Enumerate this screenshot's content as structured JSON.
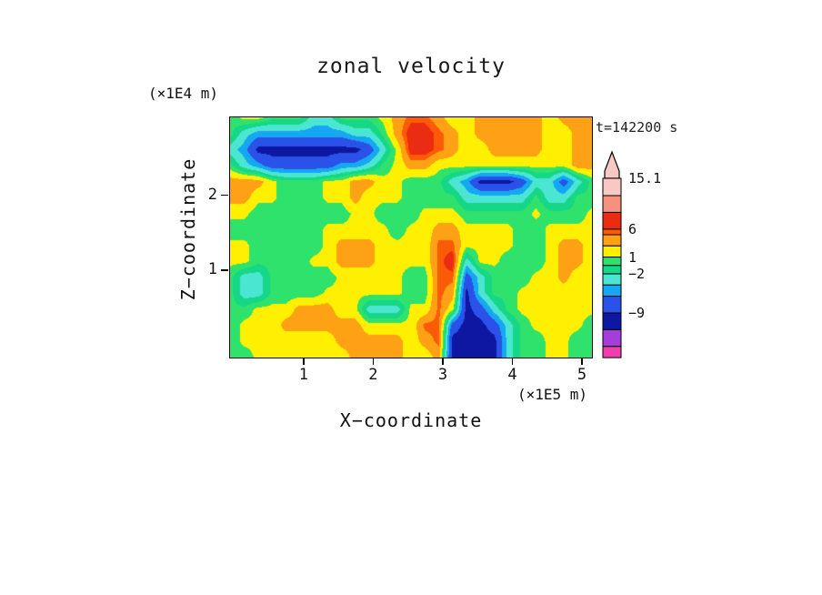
{
  "title": "zonal velocity",
  "annotations": {
    "time": "t=142200 s"
  },
  "x_axis": {
    "label": "X−coordinate",
    "unit": "(×1E5 m)",
    "min": -0.07,
    "max": 5.13,
    "ticks": [
      {
        "v": 1,
        "label": "1"
      },
      {
        "v": 2,
        "label": "2"
      },
      {
        "v": 3,
        "label": "3"
      },
      {
        "v": 4,
        "label": "4"
      },
      {
        "v": 5,
        "label": "5"
      }
    ]
  },
  "z_axis": {
    "label": "Z−coordinate",
    "unit": "(×1E4 m)",
    "min": -0.15,
    "max": 3.05,
    "ticks": [
      {
        "v": 1,
        "label": "1"
      },
      {
        "v": 2,
        "label": "2"
      }
    ]
  },
  "colorbar": {
    "arrow_color": "#f8c8c5",
    "ticks": [
      {
        "v": 15.1,
        "label": "15.1"
      },
      {
        "v": 6,
        "label": "6"
      },
      {
        "v": 1,
        "label": "1"
      },
      {
        "v": -2,
        "label": "−2"
      },
      {
        "v": -9,
        "label": "−9"
      }
    ]
  },
  "chart_data": {
    "type": "heatmap",
    "title": "zonal velocity",
    "xlabel": "X-coordinate (×1E5 m)",
    "ylabel": "Z-coordinate (×1E4 m)",
    "time": "t=142200 s",
    "x_range": [
      0,
      5.2
    ],
    "z_range": [
      0,
      3.0
    ],
    "value_max": 15.1,
    "value_min": -17,
    "levels": [
      -17,
      -15,
      -12,
      -9,
      -6,
      -4,
      -2,
      -0.5,
      1,
      3,
      5,
      6,
      9,
      12,
      15.1
    ],
    "colors": [
      "#ef3fae",
      "#a53ddb",
      "#0d17a2",
      "#2a52e8",
      "#16a7f2",
      "#4be6d2",
      "#16d787",
      "#2fe26b",
      "#fef000",
      "#ffa114",
      "#fb5b06",
      "#ea2c12",
      "#f5917e",
      "#f8c8c5"
    ],
    "values": [
      [
        0,
        1.5,
        1.5,
        0,
        0,
        0,
        -3,
        -3,
        0,
        0,
        0,
        1.5,
        4,
        5.5,
        5.5,
        4,
        1.5,
        1.5,
        4,
        4,
        4,
        4,
        4,
        1.5,
        4,
        4,
        4
      ],
      [
        0,
        -3,
        -5,
        -5,
        -5,
        -5,
        -5,
        -5,
        -5,
        -3,
        -3,
        0,
        4,
        7,
        7,
        5.5,
        4,
        1.5,
        4,
        4,
        4,
        4,
        4,
        1.5,
        1.5,
        4,
        4
      ],
      [
        -3,
        -5,
        -10,
        -10,
        -10,
        -10,
        -10,
        -10,
        -10,
        -10,
        -7.5,
        -3,
        1.5,
        7,
        7,
        5.5,
        4,
        1.5,
        1.5,
        4,
        4,
        4,
        4,
        1.5,
        1.5,
        4,
        4
      ],
      [
        0,
        -3,
        -5,
        -7.5,
        -7.5,
        -7.5,
        -7.5,
        -7.5,
        -5,
        -5,
        -3,
        0,
        1.5,
        4,
        4,
        1.5,
        1.5,
        1.5,
        1.5,
        1.5,
        1.5,
        1.5,
        1.5,
        1.5,
        1.5,
        4,
        4
      ],
      [
        4,
        4,
        4,
        1.5,
        0,
        0,
        0,
        1.5,
        1.5,
        4,
        4,
        1.5,
        1.5,
        0,
        0,
        0,
        -3,
        -5,
        -10,
        -10,
        -10,
        -7.5,
        -3,
        -3,
        -7.5,
        -3,
        0
      ],
      [
        4,
        4,
        1.5,
        1.5,
        0,
        0,
        0,
        1.5,
        1.5,
        4,
        1.5,
        1.5,
        1.5,
        0,
        0,
        0,
        0,
        -3,
        -3,
        -3,
        -3,
        -3,
        0,
        -3,
        -3,
        0,
        0
      ],
      [
        1.5,
        1.5,
        0,
        0,
        0,
        0,
        0,
        0,
        0,
        1.5,
        1.5,
        0,
        0,
        0,
        1.5,
        1.5,
        1.5,
        0,
        0,
        0,
        0,
        0,
        1.5,
        0,
        0,
        0,
        1.5
      ],
      [
        0,
        0,
        0,
        0,
        0,
        0,
        0,
        1.5,
        1.5,
        1.5,
        1.5,
        1.5,
        0,
        1.5,
        1.5,
        4,
        4,
        1.5,
        1.5,
        1.5,
        1.5,
        0,
        0,
        1.5,
        1.5,
        1.5,
        1.5
      ],
      [
        1.5,
        1.5,
        0,
        0,
        0,
        0,
        0,
        1.5,
        4,
        4,
        4,
        1.5,
        1.5,
        1.5,
        1.5,
        5.5,
        5.5,
        1.5,
        1.5,
        1.5,
        1.5,
        0,
        0,
        1.5,
        4,
        4,
        1.5
      ],
      [
        1.5,
        1.5,
        0,
        0,
        0,
        0,
        1.5,
        1.5,
        4,
        4,
        4,
        1.5,
        1.5,
        1.5,
        1.5,
        5.5,
        7,
        -3,
        1.5,
        1.5,
        0,
        0,
        0,
        1.5,
        4,
        4,
        1.5
      ],
      [
        0,
        -3,
        -3,
        0,
        0,
        0,
        0,
        0,
        1.5,
        1.5,
        1.5,
        1.5,
        1.5,
        0,
        0,
        5.5,
        5.5,
        -7.5,
        -3,
        0,
        0,
        0,
        1.5,
        1.5,
        4,
        1.5,
        1.5
      ],
      [
        0,
        -3,
        -3,
        0,
        0,
        0,
        0,
        1.5,
        1.5,
        1.5,
        1.5,
        1.5,
        1.5,
        0,
        0,
        5.5,
        4,
        -10,
        -3,
        0,
        0,
        1.5,
        1.5,
        1.5,
        1.5,
        1.5,
        1.5
      ],
      [
        0,
        0,
        1.5,
        1.5,
        1.5,
        4,
        4,
        4,
        1.5,
        1.5,
        -3,
        -3,
        -3,
        1.5,
        1.5,
        5.5,
        1.5,
        -10,
        -7.5,
        -3,
        0,
        1.5,
        1.5,
        1.5,
        1.5,
        1.5,
        1.5
      ],
      [
        0,
        1.5,
        1.5,
        1.5,
        4,
        4,
        4,
        4,
        4,
        4,
        1.5,
        1.5,
        1.5,
        1.5,
        5.5,
        5.5,
        -7.5,
        -10,
        -10,
        -7.5,
        -3,
        0,
        1.5,
        1.5,
        1.5,
        1.5,
        0
      ],
      [
        0,
        1.5,
        1.5,
        1.5,
        1.5,
        1.5,
        1.5,
        1.5,
        4,
        4,
        4,
        4,
        4,
        1.5,
        4,
        5.5,
        -10,
        -10,
        -10,
        -10,
        -3,
        0,
        0,
        1.5,
        1.5,
        0,
        0
      ],
      [
        0,
        0,
        1.5,
        1.5,
        1.5,
        1.5,
        1.5,
        1.5,
        1.5,
        4,
        4,
        4,
        4,
        1.5,
        1.5,
        4,
        -10,
        -10,
        -10,
        -10,
        -3,
        0,
        0,
        1.5,
        1.5,
        0,
        0
      ]
    ]
  }
}
